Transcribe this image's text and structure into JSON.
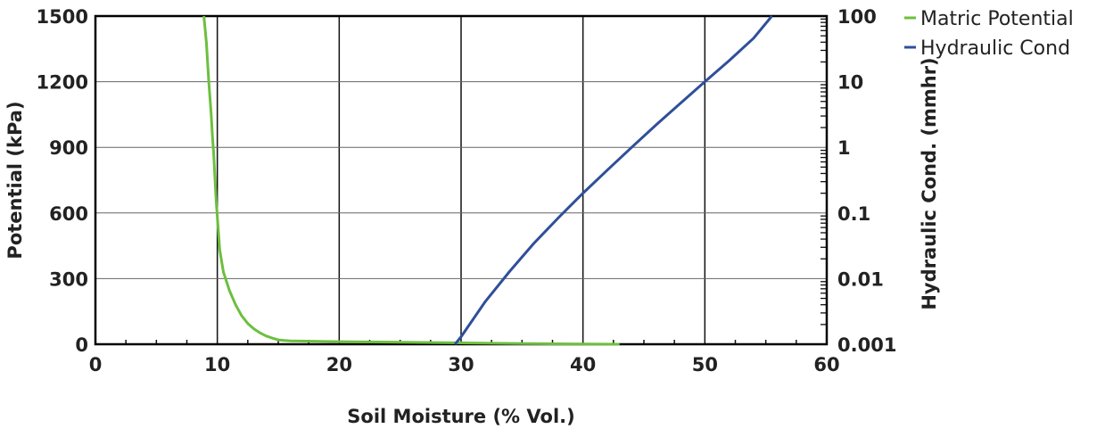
{
  "chart_data": {
    "type": "line",
    "title": "",
    "xlabel": "Soil Moisture (% Vol.)",
    "ylabel": "Potential (kPa)",
    "y2label": "Hydraulic Cond. (mmhr)",
    "xlim": [
      0,
      60
    ],
    "ylim": [
      0,
      1500
    ],
    "y2lim": [
      0.001,
      100
    ],
    "y2scale": "log",
    "x_ticks": [
      "0",
      "10",
      "20",
      "30",
      "40",
      "50",
      "60"
    ],
    "y_ticks": [
      "0",
      "300",
      "600",
      "900",
      "1200",
      "1500"
    ],
    "y2_ticks": [
      "0.001",
      "0.01",
      "0.1",
      "1",
      "10",
      "100"
    ],
    "grid": true,
    "legend_position": "top-right",
    "series": [
      {
        "name": "Matric Potential",
        "axis": "left",
        "color": "#6cbf3f",
        "x": [
          8.9,
          9.1,
          9.3,
          9.5,
          9.6,
          9.7,
          9.9,
          10.2,
          10.5,
          11,
          11.5,
          12,
          12.5,
          13,
          13.5,
          14,
          14.5,
          15,
          15.5,
          16,
          20,
          25,
          30,
          35,
          40,
          43
        ],
        "y": [
          1500,
          1380,
          1200,
          1050,
          950,
          870,
          660,
          430,
          330,
          245,
          180,
          130,
          95,
          70,
          52,
          38,
          28,
          20,
          17,
          15,
          12,
          9,
          6,
          3,
          1,
          0
        ]
      },
      {
        "name": "Hydraulic Cond",
        "axis": "right",
        "color": "#2f4f9a",
        "x": [
          29.5,
          30,
          32,
          34,
          36,
          38,
          40,
          42,
          44,
          46,
          48,
          50,
          52,
          54,
          55.5
        ],
        "y": [
          0.001,
          0.0013,
          0.0045,
          0.013,
          0.035,
          0.085,
          0.2,
          0.45,
          1.0,
          2.2,
          4.7,
          10,
          21,
          46,
          100
        ]
      }
    ]
  }
}
